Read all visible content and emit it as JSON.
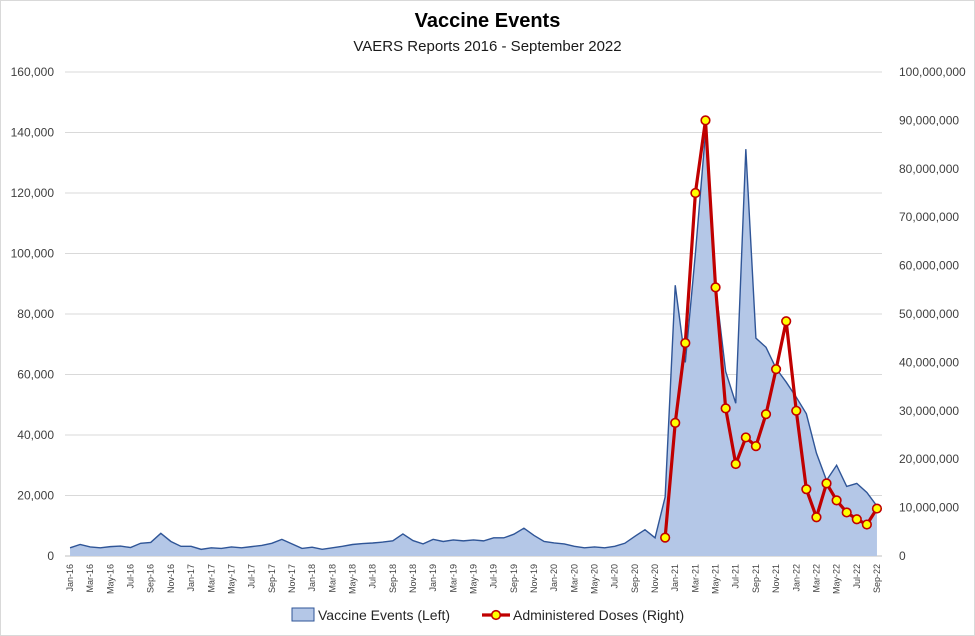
{
  "chart_data": {
    "type": "area",
    "title": "Vaccine Events",
    "subtitle": "VAERS Reports 2016 - September 2022",
    "x_ticks": [
      "Jan-16",
      "Mar-16",
      "May-16",
      "Jul-16",
      "Sep-16",
      "Nov-16",
      "Jan-17",
      "Mar-17",
      "May-17",
      "Jul-17",
      "Sep-17",
      "Nov-17",
      "Jan-18",
      "Mar-18",
      "May-18",
      "Jul-18",
      "Sep-18",
      "Nov-18",
      "Jan-19",
      "Mar-19",
      "May-19",
      "Jul-19",
      "Sep-19",
      "Nov-19",
      "Jan-20",
      "Mar-20",
      "May-20",
      "Jul-20",
      "Sep-20",
      "Nov-20",
      "Jan-21",
      "Mar-21",
      "May-21",
      "Jul-21",
      "Sep-21",
      "Nov-21",
      "Jan-22",
      "Mar-22",
      "May-22",
      "Jul-22",
      "Sep-22"
    ],
    "y_left": {
      "ticks": [
        "0",
        "20,000",
        "40,000",
        "60,000",
        "80,000",
        "100,000",
        "120,000",
        "140,000",
        "160,000"
      ],
      "ylim": [
        0,
        160000
      ]
    },
    "y_right": {
      "ticks": [
        "0",
        "10,000,000",
        "20,000,000",
        "30,000,000",
        "40,000,000",
        "50,000,000",
        "60,000,000",
        "70,000,000",
        "80,000,000",
        "90,000,000",
        "100,000,000"
      ],
      "ylim": [
        0,
        100000000
      ]
    },
    "grid": true,
    "legend_position": "bottom",
    "series": [
      {
        "name": "Vaccine Events (Left)",
        "type": "area",
        "axis": "left",
        "color": "#b4c7e7",
        "line_color": "#2f5597",
        "start": "Jan-16",
        "values": [
          2700,
          3800,
          3000,
          2700,
          3100,
          3300,
          2800,
          4200,
          4500,
          7500,
          4800,
          3200,
          3200,
          2200,
          2700,
          2500,
          3000,
          2700,
          3100,
          3500,
          4200,
          5500,
          4000,
          2500,
          2900,
          2200,
          2700,
          3200,
          3800,
          4100,
          4300,
          4600,
          5000,
          7300,
          5100,
          4000,
          5500,
          4800,
          5300,
          5000,
          5300,
          5000,
          6000,
          6000,
          7200,
          9200,
          6800,
          4800,
          4300,
          4000,
          3200,
          2700,
          3000,
          2700,
          3200,
          4200,
          6500,
          8700,
          6000,
          19500,
          89500,
          64000,
          100000,
          140000,
          89000,
          61000,
          50500,
          134500,
          72000,
          69000,
          62000,
          57500,
          52500,
          47000,
          34000,
          25000,
          30000,
          23000,
          24000,
          21000,
          16500
        ]
      },
      {
        "name": "Administered Doses (Right)",
        "type": "line",
        "axis": "right",
        "color": "#c00000",
        "marker_color": "#ffff00",
        "start": "Dec-20",
        "values": [
          3800000,
          27500000,
          44000000,
          75000000,
          90000000,
          55500000,
          30500000,
          19000000,
          24500000,
          22700000,
          29300000,
          38600000,
          48500000,
          30000000,
          13800000,
          8000000,
          15000000,
          11500000,
          9000000,
          7600000,
          6500000,
          9800000
        ]
      }
    ]
  }
}
